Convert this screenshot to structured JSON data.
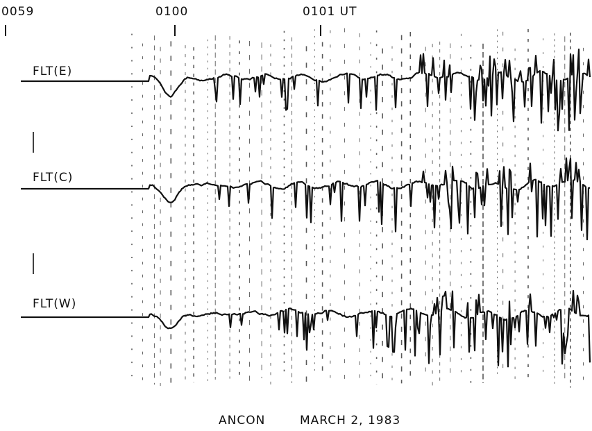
{
  "time_labels": [
    "0059",
    "0100",
    "0101 UT"
  ],
  "traces": [
    {
      "label": "FLT(E)"
    },
    {
      "label": "FLT(C)"
    },
    {
      "label": "FLT(W)"
    }
  ],
  "caption": {
    "station": "ANCON",
    "date": "MARCH 2, 1983"
  }
}
